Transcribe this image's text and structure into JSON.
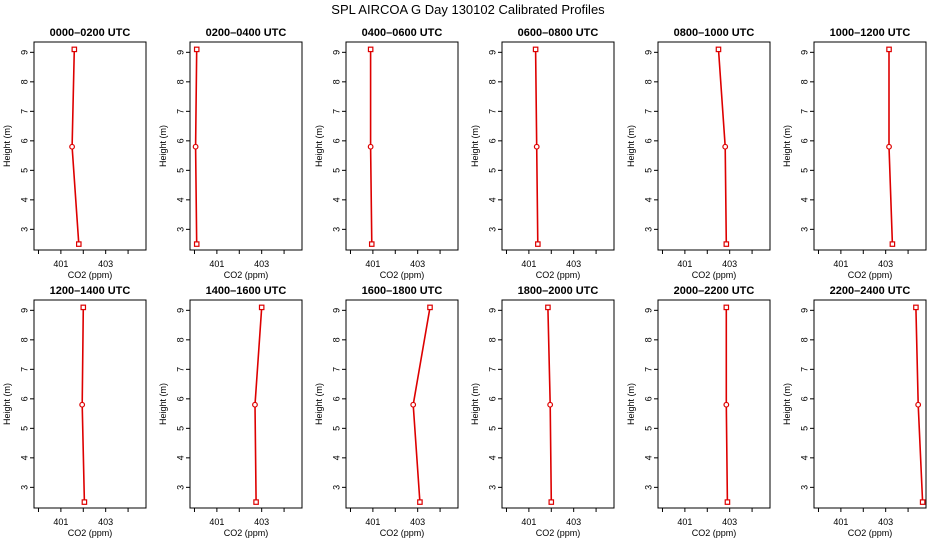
{
  "title": "SPL AIRCOA G  Day 130102  Calibrated Profiles",
  "colors": {
    "series": "#dd0000",
    "frame": "#000000"
  },
  "chart_data": {
    "type": "line",
    "xlabel": "CO2 (ppm)",
    "ylabel": "Height (m)",
    "xlim": [
      399.8,
      404.8
    ],
    "ylim": [
      2.3,
      9.35
    ],
    "xticks": [
      400,
      401,
      402,
      403,
      404
    ],
    "xticklabels": [
      "401",
      "403"
    ],
    "xticklabel_values": [
      401,
      403
    ],
    "yticks": [
      3,
      4,
      5,
      6,
      7,
      8,
      9
    ],
    "heights": [
      9.1,
      5.8,
      2.5
    ],
    "grid": false,
    "panels": [
      {
        "title": "0000–0200 UTC",
        "co2": [
          401.6,
          401.5,
          401.8
        ]
      },
      {
        "title": "0200–0400 UTC",
        "co2": [
          400.1,
          400.05,
          400.1
        ]
      },
      {
        "title": "0400–0600 UTC",
        "co2": [
          400.9,
          400.9,
          400.95
        ]
      },
      {
        "title": "0600–0800 UTC",
        "co2": [
          401.3,
          401.35,
          401.4
        ]
      },
      {
        "title": "0800–1000 UTC",
        "co2": [
          402.5,
          402.8,
          402.85
        ]
      },
      {
        "title": "1000–1200 UTC",
        "co2": [
          403.15,
          403.15,
          403.3
        ]
      },
      {
        "title": "1200–1400 UTC",
        "co2": [
          402.0,
          401.95,
          402.05
        ]
      },
      {
        "title": "1400–1600 UTC",
        "co2": [
          403.0,
          402.7,
          402.75
        ]
      },
      {
        "title": "1600–1800 UTC",
        "co2": [
          403.55,
          402.8,
          403.1
        ]
      },
      {
        "title": "1800–2000 UTC",
        "co2": [
          401.85,
          401.95,
          402.0
        ]
      },
      {
        "title": "2000–2200 UTC",
        "co2": [
          402.85,
          402.85,
          402.9
        ]
      },
      {
        "title": "2200–2400 UTC",
        "co2": [
          404.35,
          404.45,
          404.65
        ]
      }
    ]
  }
}
